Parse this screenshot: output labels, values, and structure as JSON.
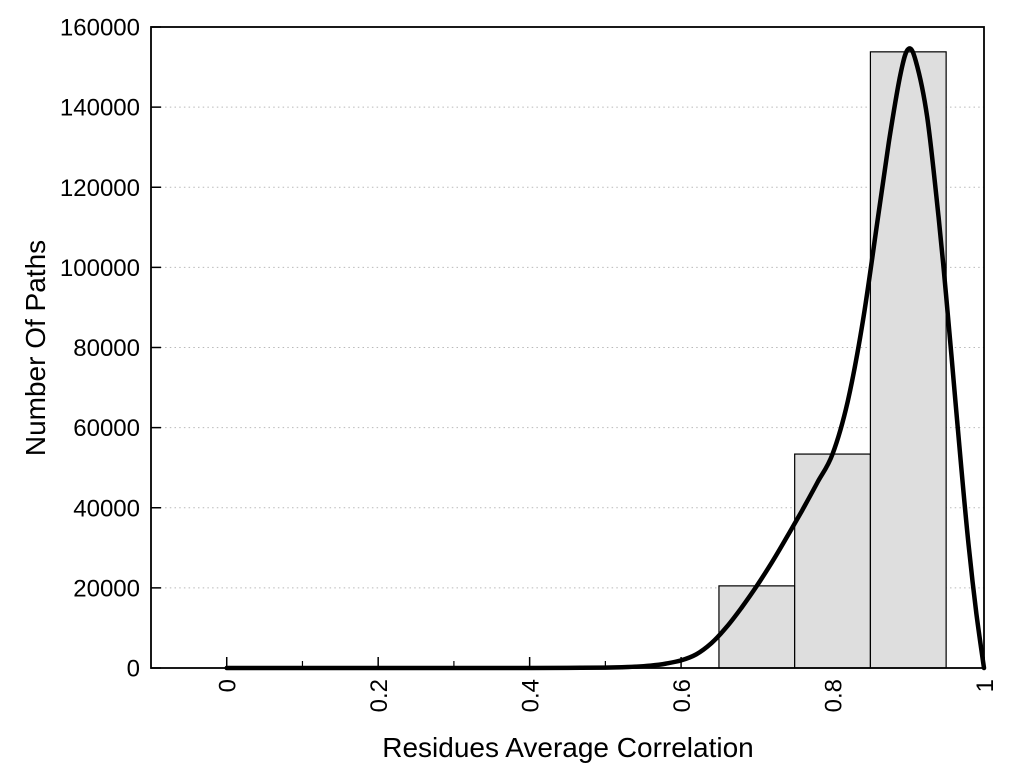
{
  "figure": {
    "background": "#ffffff"
  },
  "chart_data": {
    "type": "bar",
    "subtype": "histogram-with-smoothed-curve",
    "title": "",
    "xlabel": "Residues Average Correlation",
    "ylabel": "Number Of Paths",
    "xlim": [
      -0.1,
      1.0
    ],
    "ylim": [
      0,
      160000
    ],
    "x_major_ticks": [
      0,
      0.2,
      0.4,
      0.6,
      0.8,
      1
    ],
    "x_major_tick_labels": [
      "0",
      "0.2",
      "0.4",
      "0.6",
      "0.8",
      "1"
    ],
    "x_minor_ticks": [
      0.1,
      0.3,
      0.5,
      0.7,
      0.9
    ],
    "y_ticks": [
      0,
      20000,
      40000,
      60000,
      80000,
      100000,
      120000,
      140000,
      160000
    ],
    "y_tick_labels": [
      "0",
      "20000",
      "40000",
      "60000",
      "80000",
      "100000",
      "120000",
      "140000",
      "160000"
    ],
    "grid": {
      "horizontal_dotted": true,
      "vertical": false
    },
    "legend": null,
    "bars": {
      "bin_width": 0.1,
      "bin_centers": [
        0.7,
        0.8,
        0.9
      ],
      "bin_edges": [
        0.65,
        0.75,
        0.85,
        0.95
      ],
      "values": [
        20500,
        53400,
        153800
      ]
    },
    "curve_series": {
      "name": "smoothed-frequency-curve",
      "points": [
        [
          0.0,
          0
        ],
        [
          0.05,
          0
        ],
        [
          0.1,
          0
        ],
        [
          0.15,
          0
        ],
        [
          0.2,
          0
        ],
        [
          0.25,
          0
        ],
        [
          0.3,
          0
        ],
        [
          0.35,
          0
        ],
        [
          0.4,
          0
        ],
        [
          0.45,
          30
        ],
        [
          0.5,
          100
        ],
        [
          0.53,
          250
        ],
        [
          0.56,
          600
        ],
        [
          0.58,
          1100
        ],
        [
          0.6,
          1900
        ],
        [
          0.62,
          3400
        ],
        [
          0.64,
          6200
        ],
        [
          0.66,
          10200
        ],
        [
          0.68,
          15100
        ],
        [
          0.7,
          20500
        ],
        [
          0.72,
          26400
        ],
        [
          0.74,
          32800
        ],
        [
          0.76,
          39400
        ],
        [
          0.78,
          46300
        ],
        [
          0.8,
          53400
        ],
        [
          0.82,
          66500
        ],
        [
          0.84,
          86500
        ],
        [
          0.86,
          112500
        ],
        [
          0.875,
          132000
        ],
        [
          0.89,
          148500
        ],
        [
          0.9,
          154500
        ],
        [
          0.91,
          151500
        ],
        [
          0.925,
          137500
        ],
        [
          0.94,
          112500
        ],
        [
          0.95,
          93000
        ],
        [
          0.96,
          71500
        ],
        [
          0.97,
          50000
        ],
        [
          0.98,
          30000
        ],
        [
          0.99,
          13500
        ],
        [
          1.0,
          0
        ]
      ]
    },
    "colors": {
      "bar_fill": "#dedede",
      "bar_border": "#000000",
      "curve": "#000000",
      "grid": "#b9b9b9",
      "axis": "#000000",
      "text": "#000000"
    }
  }
}
